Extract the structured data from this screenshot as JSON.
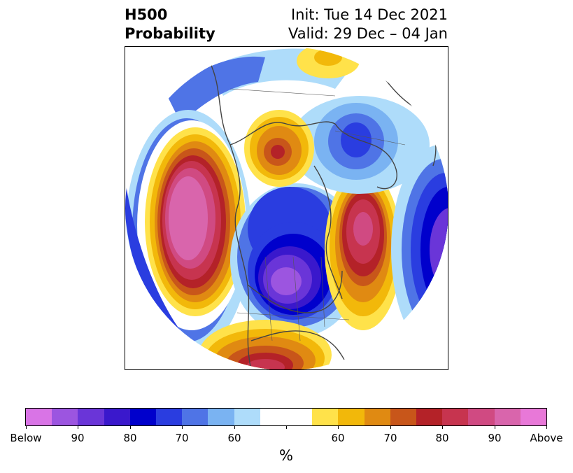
{
  "title": {
    "left_line1": "H500",
    "left_line2": "Probability",
    "right_line1": "Init: Tue 14 Dec 2021",
    "right_line2": "Valid: 29 Dec – 04 Jan"
  },
  "map": {
    "projection": "north-polar-stereographic",
    "land_outline_color": "#444444",
    "features": [
      {
        "name": "above-normal-anomaly",
        "region": "northeast Pacific / Gulf of Alaska",
        "category": "Above",
        "peak": "90+"
      },
      {
        "name": "below-normal-anomaly",
        "region": "central Canada / Great Lakes",
        "category": "Below",
        "peak": "90+"
      },
      {
        "name": "above-normal-anomaly",
        "region": "northwest Atlantic / Greenland",
        "category": "Above",
        "peak": "90"
      },
      {
        "name": "below-normal-anomaly",
        "region": "northern Europe / Scandinavia",
        "category": "Below",
        "peak": "80"
      },
      {
        "name": "above-normal-anomaly",
        "region": "eastern Siberia",
        "category": "Above",
        "peak": "80"
      },
      {
        "name": "below-normal-anomaly",
        "region": "northern Africa / Europe edge",
        "category": "Below",
        "peak": "90"
      },
      {
        "name": "above-normal-anomaly",
        "region": "Mexico",
        "category": "Above",
        "peak": "80"
      }
    ]
  },
  "colorbar": {
    "colors": [
      "#d974e6",
      "#9c55e0",
      "#6a35d8",
      "#3a18cc",
      "#0000cc",
      "#2a3de0",
      "#4f74e6",
      "#7ab3f2",
      "#aedcfa",
      "#ffffff",
      "#ffffff",
      "#ffe24a",
      "#f2b80a",
      "#e08a12",
      "#c8561a",
      "#b42228",
      "#c7344f",
      "#d04a82",
      "#d965ac",
      "#e878d8"
    ],
    "labels": [
      "Below",
      "90",
      "80",
      "70",
      "60",
      "60",
      "70",
      "80",
      "90",
      "Above"
    ],
    "unit": "%"
  }
}
